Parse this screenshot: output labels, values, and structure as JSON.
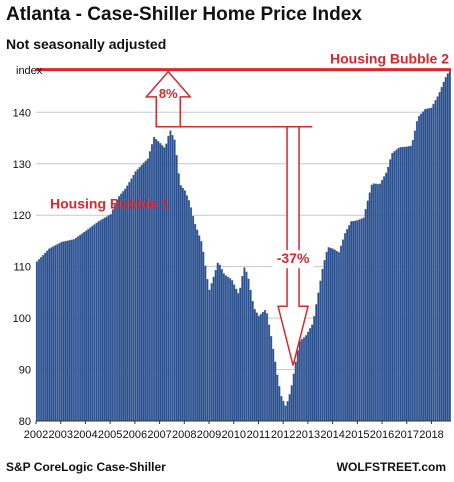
{
  "title": "Atlanta - Case-Shiller Home Price Index",
  "subtitle": "Not seasonally adjusted",
  "source": "S&P CoreLogic Case-Shiller",
  "brand": "WOLFSTREET.com",
  "colors": {
    "bar": "#2b4f8c",
    "bar_edge": "#6f8fc4",
    "annotation": "#d8282f",
    "grid": "#c8c8c8"
  },
  "chart_data": {
    "type": "bar",
    "ylabel": "index",
    "ylim": [
      80,
      149
    ],
    "yticks": [
      80,
      90,
      100,
      110,
      120,
      130,
      140
    ],
    "years": [
      "2002",
      "2003",
      "2004",
      "2005",
      "2006",
      "2007",
      "2008",
      "2009",
      "2010",
      "2011",
      "2012",
      "2013",
      "2014",
      "2015",
      "2016",
      "2017",
      "2018"
    ],
    "grid": "horizontal",
    "anchors": [
      [
        2002.0,
        111.0
      ],
      [
        2002.5,
        113.5
      ],
      [
        2003.0,
        114.8
      ],
      [
        2003.5,
        115.3
      ],
      [
        2004.0,
        117.0
      ],
      [
        2004.5,
        118.8
      ],
      [
        2005.0,
        120.2
      ],
      [
        2005.3,
        123.5
      ],
      [
        2005.6,
        125.2
      ],
      [
        2006.0,
        128.5
      ],
      [
        2006.5,
        131.0
      ],
      [
        2006.75,
        135.2
      ],
      [
        2007.0,
        134.0
      ],
      [
        2007.2,
        133.0
      ],
      [
        2007.4,
        136.6
      ],
      [
        2007.6,
        134.5
      ],
      [
        2007.8,
        126.0
      ],
      [
        2008.0,
        124.8
      ],
      [
        2008.2,
        122.5
      ],
      [
        2008.4,
        118.5
      ],
      [
        2008.7,
        114.5
      ],
      [
        2008.9,
        108.0
      ],
      [
        2009.0,
        105.5
      ],
      [
        2009.2,
        108.5
      ],
      [
        2009.35,
        111.0
      ],
      [
        2009.6,
        108.5
      ],
      [
        2009.9,
        107.5
      ],
      [
        2010.2,
        104.5
      ],
      [
        2010.4,
        110.0
      ],
      [
        2010.55,
        108.5
      ],
      [
        2010.8,
        102.0
      ],
      [
        2011.0,
        100.4
      ],
      [
        2011.3,
        101.8
      ],
      [
        2011.5,
        96.5
      ],
      [
        2011.75,
        89.0
      ],
      [
        2011.9,
        85.0
      ],
      [
        2012.1,
        82.8
      ],
      [
        2012.3,
        86.0
      ],
      [
        2012.5,
        91.5
      ],
      [
        2012.65,
        95.5
      ],
      [
        2012.9,
        96.5
      ],
      [
        2013.2,
        99.0
      ],
      [
        2013.4,
        104.5
      ],
      [
        2013.6,
        110.0
      ],
      [
        2013.8,
        113.8
      ],
      [
        2014.0,
        113.5
      ],
      [
        2014.25,
        112.8
      ],
      [
        2014.5,
        116.5
      ],
      [
        2014.75,
        118.8
      ],
      [
        2015.0,
        119.0
      ],
      [
        2015.25,
        119.5
      ],
      [
        2015.45,
        123.5
      ],
      [
        2015.6,
        126.2
      ],
      [
        2015.9,
        126.0
      ],
      [
        2016.2,
        128.5
      ],
      [
        2016.4,
        132.0
      ],
      [
        2016.7,
        133.2
      ],
      [
        2017.0,
        133.3
      ],
      [
        2017.2,
        133.5
      ],
      [
        2017.45,
        139.0
      ],
      [
        2017.75,
        140.6
      ],
      [
        2018.0,
        140.9
      ],
      [
        2018.3,
        143.5
      ],
      [
        2018.55,
        146.5
      ],
      [
        2018.72,
        148.0
      ]
    ],
    "annotations": {
      "bubble1_label": "Housing Bubble 1",
      "bubble2_label": "Housing Bubble 2",
      "up_pct": "8%",
      "down_pct": "-37%",
      "bubble2_level": 148.3,
      "bubble1_peak": 137.2
    }
  }
}
